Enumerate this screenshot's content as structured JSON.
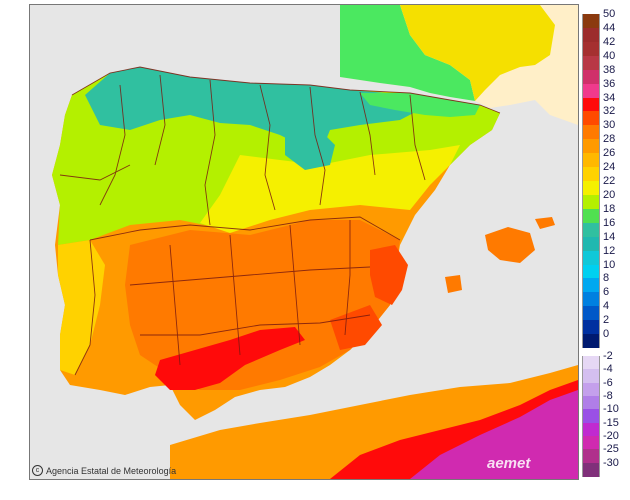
{
  "attribution": "Agencia Estatal de Meteorología",
  "watermark": "aemet",
  "legend": {
    "positive": [
      {
        "label": "50",
        "color": "#8b3a0f"
      },
      {
        "label": "44",
        "color": "#9c2c2c"
      },
      {
        "label": "42",
        "color": "#a53030"
      },
      {
        "label": "40",
        "color": "#b83845"
      },
      {
        "label": "38",
        "color": "#d0306a"
      },
      {
        "label": "36",
        "color": "#f03a8c"
      },
      {
        "label": "34",
        "color": "#ff0a0a"
      },
      {
        "label": "32",
        "color": "#ff4a00"
      },
      {
        "label": "30",
        "color": "#ff7a00"
      },
      {
        "label": "28",
        "color": "#ff9a00"
      },
      {
        "label": "26",
        "color": "#ffb800"
      },
      {
        "label": "24",
        "color": "#ffd200"
      },
      {
        "label": "22",
        "color": "#f5f000"
      },
      {
        "label": "20",
        "color": "#b4f000"
      },
      {
        "label": "18",
        "color": "#50e050"
      },
      {
        "label": "16",
        "color": "#30c0a0"
      },
      {
        "label": "14",
        "color": "#20b8b0"
      },
      {
        "label": "12",
        "color": "#10c8d8"
      },
      {
        "label": "10",
        "color": "#00d0f0"
      },
      {
        "label": "8",
        "color": "#00a8f0"
      },
      {
        "label": "6",
        "color": "#0080e0"
      },
      {
        "label": "4",
        "color": "#0058c8"
      },
      {
        "label": "2",
        "color": "#0030a0"
      },
      {
        "label": "0",
        "color": "#001a70"
      }
    ],
    "negative": [
      {
        "label": "-2",
        "color": "#e6d8f5"
      },
      {
        "label": "-4",
        "color": "#d4bff0"
      },
      {
        "label": "-6",
        "color": "#c4a0ec"
      },
      {
        "label": "-8",
        "color": "#b07ee8"
      },
      {
        "label": "-10",
        "color": "#9a50e6"
      },
      {
        "label": "-15",
        "color": "#c02ad0"
      },
      {
        "label": "-20",
        "color": "#d02ab0"
      },
      {
        "label": "-25",
        "color": "#b0308c"
      },
      {
        "label": "-30",
        "color": "#80307a"
      }
    ]
  },
  "colors": {
    "sea": "#e6e6e6",
    "france": "#ffefc8",
    "border": "#7a1a10"
  }
}
